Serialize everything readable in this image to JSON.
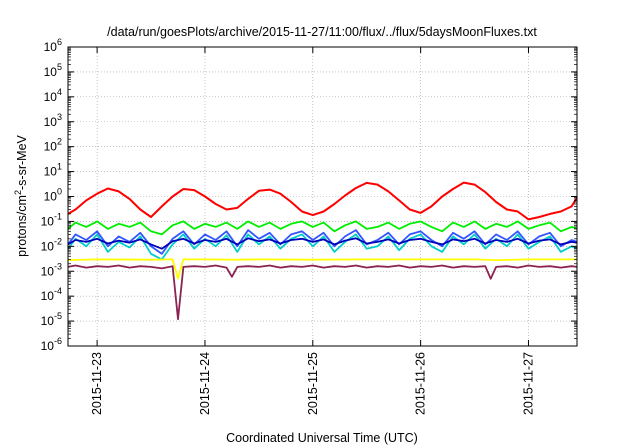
{
  "chart_data": {
    "type": "line",
    "title": "/data/run/goesPlots/archive/2015-11-27/11:00/flux/../flux/5daysMoonFluxes.txt",
    "xlabel": "Coordinated Universal Time (UTC)",
    "ylabel": {
      "base": "protons/cm",
      "sup": "2",
      "rest": "-s-sr-MeV"
    },
    "y_scale": "log",
    "ylim_exp": [
      -6,
      6
    ],
    "y_ticks": [
      {
        "base": "10",
        "exp": "-6"
      },
      {
        "base": "10",
        "exp": "-5"
      },
      {
        "base": "10",
        "exp": "-4"
      },
      {
        "base": "10",
        "exp": "-3"
      },
      {
        "base": "10",
        "exp": "-2"
      },
      {
        "base": "10",
        "exp": "-1"
      },
      {
        "base": "10",
        "exp": "0"
      },
      {
        "base": "10",
        "exp": "1"
      },
      {
        "base": "10",
        "exp": "2"
      },
      {
        "base": "10",
        "exp": "3"
      },
      {
        "base": "10",
        "exp": "4"
      },
      {
        "base": "10",
        "exp": "5"
      },
      {
        "base": "10",
        "exp": "6"
      }
    ],
    "x_range_days": [
      -0.27,
      4.45
    ],
    "x_ticks": [
      "2015-11-23",
      "2015-11-24",
      "2015-11-25",
      "2015-11-26",
      "2015-11-27"
    ],
    "grid": true,
    "legend": "none",
    "series": [
      {
        "color": "#ff0000",
        "x": [
          -0.27,
          -0.2,
          -0.1,
          0,
          0.1,
          0.2,
          0.3,
          0.4,
          0.5,
          0.6,
          0.7,
          0.8,
          0.9,
          1,
          1.1,
          1.2,
          1.3,
          1.4,
          1.5,
          1.6,
          1.7,
          1.8,
          1.9,
          2,
          2.1,
          2.2,
          2.3,
          2.4,
          2.5,
          2.6,
          2.7,
          2.8,
          2.9,
          3,
          3.1,
          3.2,
          3.3,
          3.4,
          3.5,
          3.6,
          3.7,
          3.8,
          3.9,
          4,
          4.1,
          4.2,
          4.3,
          4.4,
          4.45
        ],
        "values": [
          0.2,
          0.3,
          0.7,
          1.3,
          2.1,
          1.6,
          0.8,
          0.3,
          0.15,
          0.4,
          1.0,
          2.0,
          1.8,
          1.0,
          0.5,
          0.3,
          0.35,
          0.8,
          1.7,
          1.9,
          1.3,
          0.6,
          0.25,
          0.18,
          0.25,
          0.5,
          1.1,
          2.2,
          3.5,
          3.0,
          1.6,
          0.7,
          0.3,
          0.22,
          0.4,
          1.0,
          2.0,
          3.6,
          3.0,
          1.5,
          0.6,
          0.3,
          0.25,
          0.12,
          0.15,
          0.2,
          0.25,
          0.4,
          0.9
        ]
      },
      {
        "color": "#00ee00",
        "x": [
          -0.27,
          -0.2,
          -0.1,
          0,
          0.1,
          0.2,
          0.3,
          0.4,
          0.5,
          0.6,
          0.7,
          0.8,
          0.9,
          1,
          1.1,
          1.2,
          1.3,
          1.4,
          1.5,
          1.6,
          1.7,
          1.8,
          1.9,
          2,
          2.1,
          2.2,
          2.3,
          2.4,
          2.5,
          2.6,
          2.7,
          2.8,
          2.9,
          3,
          3.1,
          3.2,
          3.3,
          3.4,
          3.5,
          3.6,
          3.7,
          3.8,
          3.9,
          4,
          4.1,
          4.2,
          4.3,
          4.4,
          4.45
        ],
        "values": [
          0.05,
          0.09,
          0.06,
          0.1,
          0.05,
          0.08,
          0.06,
          0.09,
          0.04,
          0.03,
          0.07,
          0.1,
          0.05,
          0.08,
          0.06,
          0.09,
          0.05,
          0.1,
          0.06,
          0.09,
          0.05,
          0.08,
          0.1,
          0.06,
          0.09,
          0.04,
          0.07,
          0.1,
          0.05,
          0.06,
          0.09,
          0.05,
          0.08,
          0.1,
          0.06,
          0.04,
          0.09,
          0.06,
          0.1,
          0.05,
          0.08,
          0.06,
          0.1,
          0.05,
          0.07,
          0.09,
          0.04,
          0.06,
          0.05
        ]
      },
      {
        "color": "#00cccc",
        "x": [
          -0.27,
          -0.2,
          -0.1,
          0,
          0.1,
          0.2,
          0.3,
          0.4,
          0.5,
          0.6,
          0.7,
          0.8,
          0.9,
          1,
          1.1,
          1.2,
          1.3,
          1.4,
          1.5,
          1.6,
          1.7,
          1.8,
          1.9,
          2,
          2.1,
          2.2,
          2.3,
          2.4,
          2.5,
          2.6,
          2.7,
          2.8,
          2.9,
          3,
          3.1,
          3.2,
          3.3,
          3.4,
          3.5,
          3.6,
          3.7,
          3.8,
          3.9,
          4,
          4.1,
          4.2,
          4.3,
          4.4,
          4.45
        ],
        "values": [
          0.008,
          0.02,
          0.01,
          0.03,
          0.006,
          0.015,
          0.009,
          0.025,
          0.005,
          0.003,
          0.012,
          0.03,
          0.008,
          0.02,
          0.01,
          0.028,
          0.006,
          0.03,
          0.012,
          0.025,
          0.008,
          0.02,
          0.03,
          0.01,
          0.025,
          0.006,
          0.015,
          0.03,
          0.008,
          0.01,
          0.025,
          0.007,
          0.02,
          0.03,
          0.01,
          0.006,
          0.025,
          0.012,
          0.03,
          0.008,
          0.02,
          0.01,
          0.03,
          0.008,
          0.015,
          0.025,
          0.006,
          0.01,
          0.008
        ]
      },
      {
        "color": "#3355ff",
        "x": [
          -0.27,
          -0.2,
          -0.1,
          0,
          0.1,
          0.2,
          0.3,
          0.4,
          0.5,
          0.6,
          0.7,
          0.8,
          0.9,
          1,
          1.1,
          1.2,
          1.3,
          1.4,
          1.5,
          1.6,
          1.7,
          1.8,
          1.9,
          2,
          2.1,
          2.2,
          2.3,
          2.4,
          2.5,
          2.6,
          2.7,
          2.8,
          2.9,
          3,
          3.1,
          3.2,
          3.3,
          3.4,
          3.5,
          3.6,
          3.7,
          3.8,
          3.9,
          4,
          4.1,
          4.2,
          4.3,
          4.4,
          4.45
        ],
        "values": [
          0.012,
          0.03,
          0.018,
          0.04,
          0.01,
          0.025,
          0.015,
          0.035,
          0.01,
          0.005,
          0.02,
          0.04,
          0.012,
          0.03,
          0.018,
          0.04,
          0.01,
          0.045,
          0.02,
          0.035,
          0.012,
          0.03,
          0.04,
          0.018,
          0.035,
          0.01,
          0.025,
          0.045,
          0.012,
          0.018,
          0.035,
          0.012,
          0.03,
          0.04,
          0.018,
          0.01,
          0.035,
          0.02,
          0.04,
          0.012,
          0.03,
          0.018,
          0.04,
          0.012,
          0.025,
          0.035,
          0.01,
          0.018,
          0.015
        ]
      },
      {
        "color": "#0000bb",
        "x": [
          -0.27,
          -0.2,
          -0.1,
          0,
          0.1,
          0.2,
          0.3,
          0.4,
          0.5,
          0.6,
          0.7,
          0.8,
          0.9,
          1,
          1.1,
          1.2,
          1.3,
          1.4,
          1.5,
          1.6,
          1.7,
          1.8,
          1.9,
          2,
          2.1,
          2.2,
          2.3,
          2.4,
          2.5,
          2.6,
          2.7,
          2.8,
          2.9,
          3,
          3.1,
          3.2,
          3.3,
          3.4,
          3.5,
          3.6,
          3.7,
          3.8,
          3.9,
          4,
          4.1,
          4.2,
          4.3,
          4.4,
          4.45
        ],
        "values": [
          0.012,
          0.018,
          0.015,
          0.02,
          0.013,
          0.017,
          0.014,
          0.019,
          0.012,
          0.008,
          0.016,
          0.02,
          0.013,
          0.018,
          0.015,
          0.02,
          0.012,
          0.021,
          0.016,
          0.019,
          0.013,
          0.018,
          0.02,
          0.015,
          0.019,
          0.012,
          0.017,
          0.021,
          0.013,
          0.015,
          0.019,
          0.013,
          0.018,
          0.02,
          0.015,
          0.012,
          0.019,
          0.016,
          0.02,
          0.013,
          0.018,
          0.015,
          0.02,
          0.013,
          0.017,
          0.019,
          0.012,
          0.015,
          0.014
        ]
      },
      {
        "color": "#ffff00",
        "x": [
          -0.27,
          0,
          0.5,
          0.7,
          0.75,
          0.8,
          1,
          1.3,
          1.5,
          2,
          2.5,
          3,
          3.5,
          3.7,
          4,
          4.45
        ],
        "values": [
          0.0028,
          0.003,
          0.0029,
          0.003,
          0.0005,
          0.003,
          0.003,
          0.0029,
          0.003,
          0.0029,
          0.003,
          0.003,
          0.003,
          0.0028,
          0.003,
          0.003
        ]
      },
      {
        "color": "#8b2252",
        "x": [
          -0.27,
          -0.2,
          -0.1,
          0,
          0.1,
          0.2,
          0.3,
          0.4,
          0.5,
          0.6,
          0.7,
          0.75,
          0.8,
          0.9,
          1,
          1.1,
          1.2,
          1.25,
          1.3,
          1.4,
          1.5,
          1.6,
          1.7,
          1.8,
          1.9,
          2,
          2.1,
          2.2,
          2.3,
          2.4,
          2.5,
          2.6,
          2.7,
          2.8,
          2.9,
          3,
          3.1,
          3.2,
          3.3,
          3.4,
          3.5,
          3.6,
          3.65,
          3.7,
          3.8,
          3.9,
          4,
          4.1,
          4.2,
          4.3,
          4.4,
          4.45
        ],
        "values": [
          0.0015,
          0.0017,
          0.0014,
          0.0016,
          0.0015,
          0.0017,
          0.0014,
          0.0016,
          0.0015,
          0.0013,
          0.0016,
          1.2e-05,
          0.0015,
          0.0016,
          0.0015,
          0.0017,
          0.0014,
          0.0006,
          0.0015,
          0.0016,
          0.0015,
          0.0017,
          0.0014,
          0.0016,
          0.0015,
          0.0017,
          0.0014,
          0.0016,
          0.0015,
          0.0017,
          0.0014,
          0.0016,
          0.0015,
          0.0017,
          0.0014,
          0.0016,
          0.0015,
          0.0017,
          0.0014,
          0.0016,
          0.0015,
          0.0016,
          0.0005,
          0.0015,
          0.0016,
          0.0014,
          0.0017,
          0.0015,
          0.0016,
          0.0014,
          0.0016,
          0.0015
        ]
      }
    ]
  }
}
